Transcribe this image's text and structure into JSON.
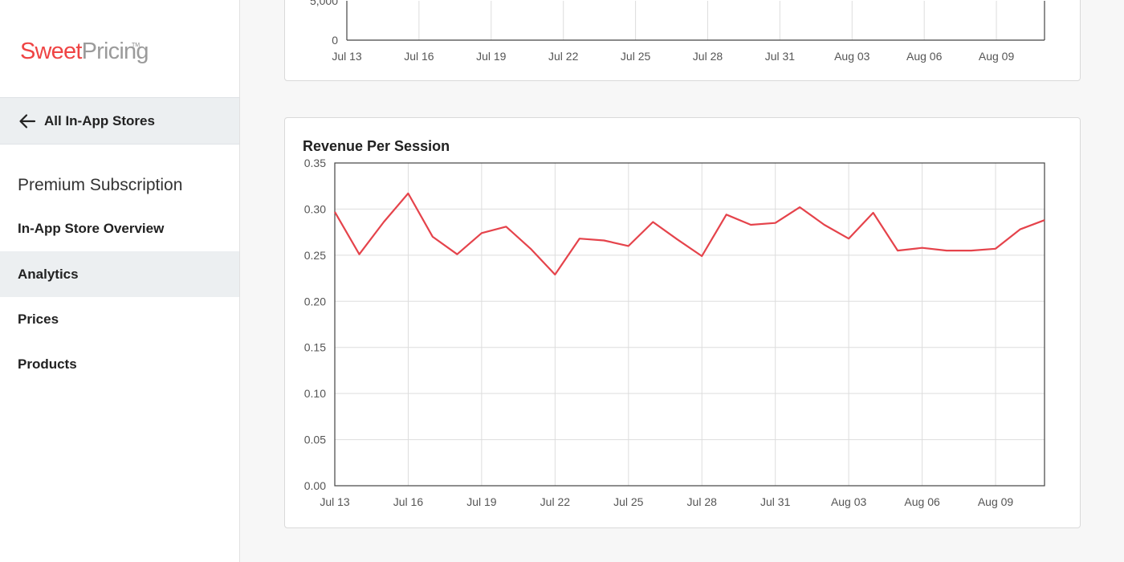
{
  "logo": {
    "sweet": "Sweet",
    "pricing": "Pricing",
    "tm": "TM"
  },
  "sidebar": {
    "back_label": "All In-App Stores",
    "section_title": "Premium Subscription",
    "items": [
      {
        "label": "In-App Store Overview",
        "active": false
      },
      {
        "label": "Analytics",
        "active": true
      },
      {
        "label": "Prices",
        "active": false
      },
      {
        "label": "Products",
        "active": false
      }
    ]
  },
  "top_chart": {
    "y_ticks": [
      "0",
      "5,000"
    ],
    "x_ticks": [
      "Jul 13",
      "Jul 16",
      "Jul 19",
      "Jul 22",
      "Jul 25",
      "Jul 28",
      "Jul 31",
      "Aug 03",
      "Aug 06",
      "Aug 09"
    ]
  },
  "chart_data": {
    "type": "line",
    "title": "Revenue Per Session",
    "xlabel": "",
    "ylabel": "",
    "ylim": [
      0,
      0.35
    ],
    "y_ticks": [
      "0.00",
      "0.05",
      "0.10",
      "0.15",
      "0.20",
      "0.25",
      "0.30",
      "0.35"
    ],
    "x_ticks": [
      "Jul 13",
      "Jul 16",
      "Jul 19",
      "Jul 22",
      "Jul 25",
      "Jul 28",
      "Jul 31",
      "Aug 03",
      "Aug 06",
      "Aug 09"
    ],
    "x_range": [
      "2023-07-13",
      "2023-08-11"
    ],
    "grid": true,
    "series": [
      {
        "color": "#e5434b",
        "x": [
          "2023-07-13",
          "2023-07-14",
          "2023-07-15",
          "2023-07-16",
          "2023-07-17",
          "2023-07-18",
          "2023-07-19",
          "2023-07-20",
          "2023-07-21",
          "2023-07-22",
          "2023-07-23",
          "2023-07-24",
          "2023-07-25",
          "2023-07-26",
          "2023-07-27",
          "2023-07-28",
          "2023-07-29",
          "2023-07-30",
          "2023-07-31",
          "2023-08-01",
          "2023-08-02",
          "2023-08-03",
          "2023-08-04",
          "2023-08-05",
          "2023-08-06",
          "2023-08-07",
          "2023-08-08",
          "2023-08-09",
          "2023-08-10",
          "2023-08-11"
        ],
        "values": [
          0.297,
          0.251,
          0.286,
          0.317,
          0.27,
          0.251,
          0.274,
          0.281,
          0.257,
          0.229,
          0.268,
          0.266,
          0.26,
          0.286,
          0.267,
          0.249,
          0.294,
          0.283,
          0.285,
          0.302,
          0.283,
          0.268,
          0.296,
          0.255,
          0.258,
          0.255,
          0.255,
          0.257,
          0.278,
          0.288
        ]
      }
    ]
  }
}
